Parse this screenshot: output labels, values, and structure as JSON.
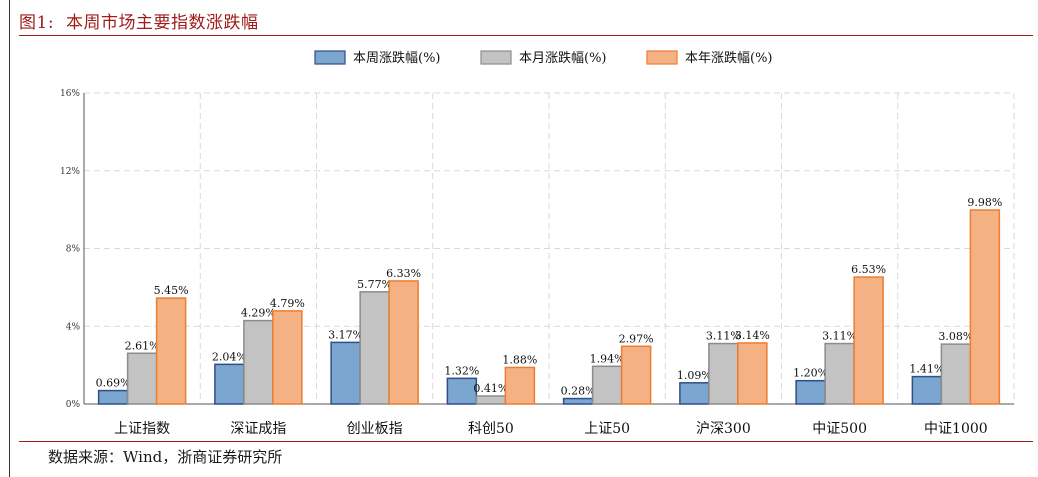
{
  "figure": {
    "label": "图1:",
    "title": "本周市场主要指数涨跌幅",
    "source": "数据来源：Wind，浙商证券研究所"
  },
  "colors": {
    "title_red": "#a11b1b",
    "week_fill": "#7aa6d0",
    "week_stroke": "#2f4e8a",
    "month_fill": "#c3c3c3",
    "month_stroke": "#8c8c8c",
    "year_fill": "#f4b183",
    "year_stroke": "#ed7d31"
  },
  "chart_data": {
    "type": "bar",
    "title": "",
    "xlabel": "",
    "ylabel": "",
    "ylim": [
      0,
      16
    ],
    "yticks": [
      "0%",
      "4%",
      "8%",
      "12%",
      "16%"
    ],
    "grid": "dashed",
    "legend_position": "top-center",
    "categories": [
      "上证指数",
      "深证成指",
      "创业板指",
      "科创50",
      "上证50",
      "沪深300",
      "中证500",
      "中证1000"
    ],
    "series": [
      {
        "name": "本周涨跌幅(%)",
        "values": [
          0.69,
          2.04,
          3.17,
          1.32,
          0.28,
          1.09,
          1.2,
          1.41
        ],
        "labels": [
          "0.69%",
          "2.04%",
          "3.17%",
          "1.32%",
          "0.28%",
          "1.09%",
          "1.20%",
          "1.41%"
        ]
      },
      {
        "name": "本月涨跌幅(%)",
        "values": [
          2.61,
          4.29,
          5.77,
          0.41,
          1.94,
          3.11,
          3.11,
          3.08
        ],
        "labels": [
          "2.61%",
          "4.29%",
          "5.77%",
          "0.41%",
          "1.94%",
          "3.11%",
          "3.11%",
          "3.08%"
        ]
      },
      {
        "name": "本年涨跌幅(%)",
        "values": [
          5.45,
          4.79,
          6.33,
          1.88,
          2.97,
          3.14,
          6.53,
          9.98
        ],
        "labels": [
          "5.45%",
          "4.79%",
          "6.33%",
          "1.88%",
          "2.97%",
          "3.14%",
          "6.53%",
          "9.98%"
        ]
      }
    ]
  }
}
